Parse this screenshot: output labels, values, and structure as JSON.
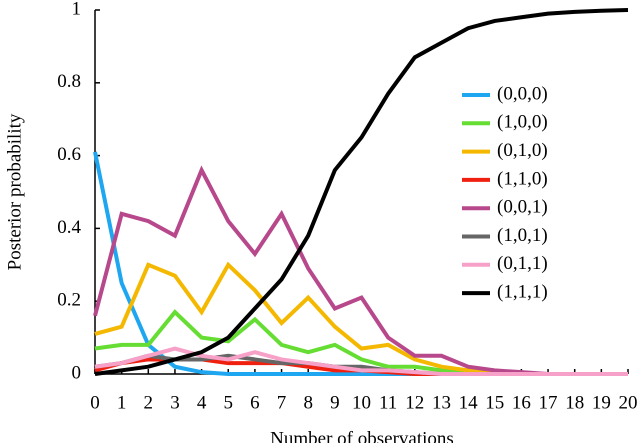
{
  "chart_data": {
    "type": "line",
    "xlabel": "Number of observations",
    "ylabel": "Posterior probability",
    "x": [
      0,
      1,
      2,
      3,
      4,
      5,
      6,
      7,
      8,
      9,
      10,
      11,
      12,
      13,
      14,
      15,
      16,
      17,
      18,
      19,
      20
    ],
    "xlim": [
      0,
      20
    ],
    "xticks": [
      0,
      1,
      2,
      3,
      4,
      5,
      6,
      7,
      8,
      9,
      10,
      11,
      12,
      13,
      14,
      15,
      16,
      17,
      18,
      19,
      20
    ],
    "ylim": [
      0,
      1
    ],
    "yticks": [
      0,
      0.2,
      0.4,
      0.6,
      0.8,
      1
    ],
    "series": [
      {
        "name": "(0,0,0)",
        "color": "#1ea7f0",
        "values": [
          0.61,
          0.25,
          0.08,
          0.02,
          0.005,
          0,
          0,
          0,
          0,
          0,
          0,
          0,
          0,
          0,
          0,
          0,
          0,
          0,
          0,
          0,
          0
        ]
      },
      {
        "name": "(1,0,0)",
        "color": "#66dd33",
        "values": [
          0.07,
          0.08,
          0.08,
          0.17,
          0.1,
          0.09,
          0.15,
          0.08,
          0.06,
          0.08,
          0.04,
          0.02,
          0.02,
          0.01,
          0.005,
          0,
          0,
          0,
          0,
          0,
          0
        ]
      },
      {
        "name": "(0,1,0)",
        "color": "#f5b800",
        "values": [
          0.11,
          0.13,
          0.3,
          0.27,
          0.17,
          0.3,
          0.23,
          0.14,
          0.21,
          0.13,
          0.07,
          0.08,
          0.04,
          0.02,
          0.01,
          0.005,
          0,
          0,
          0,
          0,
          0
        ]
      },
      {
        "name": "(1,1,0)",
        "color": "#f02010",
        "values": [
          0.01,
          0.03,
          0.04,
          0.04,
          0.04,
          0.03,
          0.03,
          0.03,
          0.02,
          0.01,
          0.01,
          0.005,
          0,
          0,
          0,
          0,
          0,
          0,
          0,
          0,
          0
        ]
      },
      {
        "name": "(0,0,1)",
        "color": "#b8488c",
        "values": [
          0.16,
          0.44,
          0.42,
          0.38,
          0.56,
          0.42,
          0.33,
          0.44,
          0.29,
          0.18,
          0.21,
          0.1,
          0.05,
          0.05,
          0.02,
          0.01,
          0.005,
          0,
          0,
          0,
          0
        ]
      },
      {
        "name": "(1,0,1)",
        "color": "#666666",
        "values": [
          0.02,
          0.03,
          0.05,
          0.04,
          0.04,
          0.05,
          0.04,
          0.03,
          0.03,
          0.02,
          0.02,
          0.01,
          0.005,
          0,
          0,
          0,
          0,
          0,
          0,
          0,
          0
        ]
      },
      {
        "name": "(0,1,1)",
        "color": "#f7a0c8",
        "values": [
          0.02,
          0.03,
          0.05,
          0.07,
          0.05,
          0.04,
          0.06,
          0.04,
          0.03,
          0.02,
          0.01,
          0.01,
          0.005,
          0,
          0,
          0,
          0,
          0,
          0,
          0,
          0
        ]
      },
      {
        "name": "(1,1,1)",
        "color": "#000000",
        "values": [
          0,
          0.01,
          0.02,
          0.04,
          0.06,
          0.1,
          0.18,
          0.26,
          0.38,
          0.56,
          0.65,
          0.77,
          0.87,
          0.91,
          0.95,
          0.97,
          0.98,
          0.99,
          0.995,
          0.998,
          1
        ]
      }
    ]
  }
}
